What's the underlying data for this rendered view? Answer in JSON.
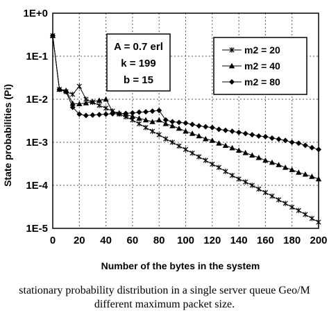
{
  "chart_data": {
    "type": "line",
    "title": "",
    "xlabel": "Number of the bytes in the system",
    "ylabel": "State probabilities (Pi)",
    "xlim": [
      0,
      200
    ],
    "ylim": [
      1e-05,
      1
    ],
    "yscale": "log",
    "grid": true,
    "x_ticks": [
      "0",
      "20",
      "40",
      "60",
      "80",
      "100",
      "120",
      "140",
      "160",
      "180",
      "200"
    ],
    "y_ticks": [
      "1E-5",
      "1E-4",
      "1E-3",
      "1E-2",
      "1E-1",
      "1E+0"
    ],
    "legend_placement": "top-right",
    "annotation_lines": [
      "A = 0.7 erl",
      "k = 199",
      "b = 15"
    ],
    "series": [
      {
        "name": "m2 = 20",
        "marker": "asterisk",
        "x": [
          0,
          5,
          10,
          15,
          20,
          25,
          30,
          35,
          40,
          45,
          50,
          55,
          60,
          65,
          70,
          75,
          80,
          85,
          90,
          95,
          100,
          105,
          110,
          115,
          120,
          125,
          130,
          135,
          140,
          145,
          150,
          155,
          160,
          165,
          170,
          175,
          180,
          185,
          190,
          195,
          200
        ],
        "y": [
          0.3,
          0.017,
          0.015,
          0.013,
          0.02,
          0.01,
          0.0085,
          0.0072,
          0.0062,
          0.0053,
          0.0045,
          0.0039,
          0.0033,
          0.0027,
          0.0022,
          0.0018,
          0.0015,
          0.0012,
          0.001,
          0.00082,
          0.00068,
          0.00056,
          0.00046,
          0.00038,
          0.00031,
          0.00026,
          0.00021,
          0.00017,
          0.00014,
          0.00012,
          0.0001,
          8.2e-05,
          6.8e-05,
          5.6e-05,
          4.6e-05,
          3.8e-05,
          3.1e-05,
          2.6e-05,
          2.1e-05,
          1.7e-05,
          1.4e-05
        ]
      },
      {
        "name": "m2 = 40",
        "marker": "triangle",
        "x": [
          0,
          5,
          10,
          15,
          20,
          25,
          30,
          35,
          40,
          45,
          50,
          55,
          60,
          65,
          70,
          75,
          80,
          85,
          90,
          95,
          100,
          105,
          110,
          115,
          120,
          125,
          130,
          135,
          140,
          145,
          150,
          155,
          160,
          165,
          170,
          175,
          180,
          185,
          190,
          195,
          200
        ],
        "y": [
          0.3,
          0.017,
          0.016,
          0.008,
          0.0078,
          0.0082,
          0.0088,
          0.0094,
          0.01,
          0.0052,
          0.0048,
          0.0044,
          0.004,
          0.0036,
          0.0033,
          0.003,
          0.0033,
          0.0027,
          0.0024,
          0.0021,
          0.0018,
          0.0016,
          0.0014,
          0.0012,
          0.0011,
          0.00095,
          0.00084,
          0.00074,
          0.00065,
          0.00057,
          0.0005,
          0.00044,
          0.00038,
          0.00034,
          0.0003,
          0.00026,
          0.00023,
          0.0002,
          0.00018,
          0.00016,
          0.00014
        ]
      },
      {
        "name": "m2 = 80",
        "marker": "diamond",
        "x": [
          0,
          5,
          10,
          15,
          20,
          25,
          30,
          35,
          40,
          45,
          50,
          55,
          60,
          65,
          70,
          75,
          80,
          85,
          90,
          95,
          100,
          105,
          110,
          115,
          120,
          125,
          130,
          135,
          140,
          145,
          150,
          155,
          160,
          165,
          170,
          175,
          180,
          185,
          190,
          195,
          200
        ],
        "y": [
          0.3,
          0.017,
          0.015,
          0.0065,
          0.0045,
          0.0042,
          0.0043,
          0.0044,
          0.0045,
          0.0046,
          0.0046,
          0.0047,
          0.0048,
          0.005,
          0.0051,
          0.0053,
          0.0055,
          0.0033,
          0.003,
          0.0029,
          0.0028,
          0.0026,
          0.0024,
          0.0023,
          0.0022,
          0.002,
          0.0019,
          0.0018,
          0.0017,
          0.0016,
          0.0015,
          0.0014,
          0.00135,
          0.00125,
          0.00118,
          0.0011,
          0.001,
          0.00095,
          0.00085,
          0.00075,
          0.00068
        ]
      }
    ]
  },
  "caption": {
    "line1": "stationary probability distribution in a single server queue Geo/M",
    "line2": "different maximum packet size."
  }
}
